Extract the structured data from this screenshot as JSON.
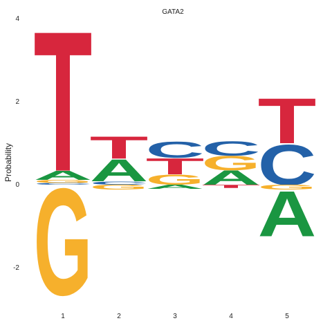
{
  "chart_data": {
    "type": "sequence-logo",
    "title": "GATA2",
    "ylabel": "Probability",
    "xlabel": "",
    "ylim": [
      -2.7,
      4
    ],
    "grid": false,
    "y_ticks": [
      "-2",
      "0",
      "2",
      "4"
    ],
    "positions": [
      "1",
      "2",
      "3",
      "4",
      "5"
    ],
    "colors": {
      "A": "#1a9641",
      "C": "#2361a8",
      "G": "#f6b02c",
      "T": "#d7263d"
    },
    "columns": [
      {
        "position": "1",
        "above": [
          {
            "letter": "C",
            "value": 0.04
          },
          {
            "letter": "G",
            "value": 0.08
          },
          {
            "letter": "A",
            "value": 0.22
          },
          {
            "letter": "T",
            "value": 3.47
          }
        ],
        "below": [
          {
            "letter": "G",
            "value": 2.65
          }
        ]
      },
      {
        "position": "2",
        "above": [
          {
            "letter": "C",
            "value": 0.08
          },
          {
            "letter": "A",
            "value": 0.55
          },
          {
            "letter": "T",
            "value": 0.55
          }
        ],
        "below": [
          {
            "letter": "G",
            "value": 0.12
          }
        ]
      },
      {
        "position": "3",
        "above": [
          {
            "letter": "G",
            "value": 0.25
          },
          {
            "letter": "T",
            "value": 0.4
          },
          {
            "letter": "C",
            "value": 0.4
          }
        ],
        "below": [
          {
            "letter": "A",
            "value": 0.1
          }
        ]
      },
      {
        "position": "4",
        "above": [
          {
            "letter": "A",
            "value": 0.35
          },
          {
            "letter": "G",
            "value": 0.35
          },
          {
            "letter": "C",
            "value": 0.35
          }
        ],
        "below": [
          {
            "letter": "T",
            "value": 0.08
          }
        ]
      },
      {
        "position": "5",
        "above": [
          {
            "letter": "C",
            "value": 1.0
          },
          {
            "letter": "T",
            "value": 1.12
          }
        ],
        "below": [
          {
            "letter": "G",
            "value": 0.12
          },
          {
            "letter": "A",
            "value": 1.12
          }
        ]
      }
    ]
  }
}
